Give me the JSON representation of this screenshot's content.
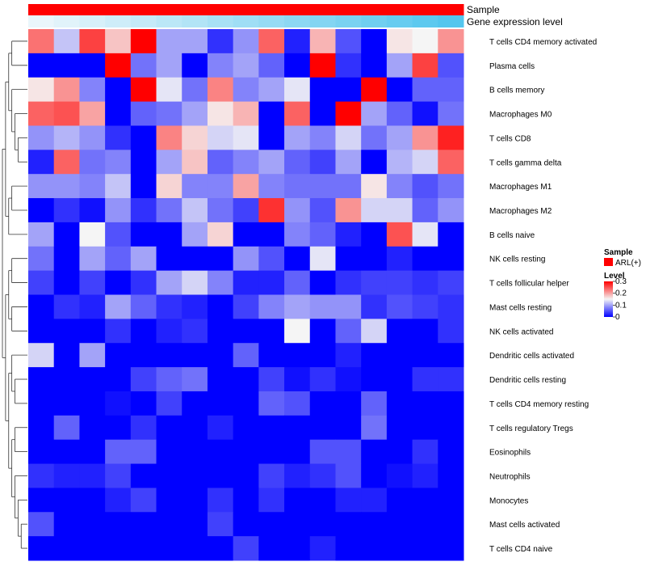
{
  "chart_data": {
    "type": "heatmap",
    "title": "",
    "annotation_tracks": [
      {
        "name": "Sample",
        "kind": "categorical",
        "values": "all ARL(+)"
      },
      {
        "name": "Gene expression level",
        "kind": "gradient",
        "from_color": "#eaf6fb",
        "to_color": "#54c6ee"
      }
    ],
    "rows": [
      "T cells CD4 memory activated",
      "Plasma cells",
      "B cells memory",
      "Macrophages M0",
      "T cells CD8",
      "T cells gamma delta",
      "Macrophages M1",
      "Macrophages M2",
      "B cells naive",
      "NK cells resting",
      "T cells follicular helper",
      "Mast cells resting",
      "NK cells activated",
      "Dendritic cells activated",
      "Dendritic cells resting",
      "T cells CD4 memory resting",
      "T cells regulatory  Tregs",
      "Eosinophils",
      "Neutrophils",
      "Monocytes",
      "Mast cells activated",
      "T cells CD4 naive"
    ],
    "n_columns": 17,
    "values": [
      [
        0.23,
        0.12,
        0.26,
        0.18,
        0.3,
        0.1,
        0.1,
        0.03,
        0.09,
        0.24,
        0.02,
        0.19,
        0.05,
        0.0,
        0.16,
        0.15,
        0.21
      ],
      [
        0.0,
        0.0,
        0.0,
        0.3,
        0.07,
        0.1,
        0.0,
        0.08,
        0.1,
        0.06,
        0.0,
        0.3,
        0.03,
        0.0,
        0.1,
        0.26,
        0.05
      ],
      [
        0.16,
        0.21,
        0.08,
        0.0,
        0.3,
        0.14,
        0.07,
        0.22,
        0.08,
        0.1,
        0.14,
        0.0,
        0.0,
        0.3,
        0.0,
        0.06,
        0.06
      ],
      [
        0.24,
        0.25,
        0.2,
        0.0,
        0.06,
        0.07,
        0.1,
        0.16,
        0.19,
        0.0,
        0.24,
        0.0,
        0.3,
        0.1,
        0.06,
        0.01,
        0.07
      ],
      [
        0.09,
        0.11,
        0.09,
        0.03,
        0.0,
        0.22,
        0.17,
        0.13,
        0.14,
        0.0,
        0.1,
        0.08,
        0.13,
        0.07,
        0.1,
        0.21,
        0.28
      ],
      [
        0.02,
        0.24,
        0.07,
        0.08,
        0.0,
        0.1,
        0.18,
        0.06,
        0.08,
        0.1,
        0.06,
        0.04,
        0.1,
        0.0,
        0.11,
        0.13,
        0.24
      ],
      [
        0.09,
        0.09,
        0.08,
        0.12,
        0.0,
        0.17,
        0.08,
        0.08,
        0.2,
        0.08,
        0.07,
        0.07,
        0.07,
        0.16,
        0.08,
        0.05,
        0.07
      ],
      [
        0.0,
        0.03,
        0.01,
        0.09,
        0.03,
        0.07,
        0.12,
        0.07,
        0.04,
        0.27,
        0.09,
        0.05,
        0.21,
        0.13,
        0.13,
        0.06,
        0.09
      ],
      [
        0.1,
        0.0,
        0.15,
        0.05,
        0.0,
        0.0,
        0.1,
        0.17,
        0.0,
        0.0,
        0.08,
        0.06,
        0.02,
        0.0,
        0.25,
        0.14,
        0.0
      ],
      [
        0.07,
        0.0,
        0.1,
        0.06,
        0.1,
        0.0,
        0.0,
        0.0,
        0.09,
        0.05,
        0.0,
        0.14,
        0.0,
        0.0,
        0.02,
        0.0,
        0.0
      ],
      [
        0.04,
        0.0,
        0.04,
        0.0,
        0.03,
        0.1,
        0.13,
        0.08,
        0.02,
        0.02,
        0.06,
        0.0,
        0.03,
        0.04,
        0.04,
        0.03,
        0.04
      ],
      [
        0.0,
        0.03,
        0.02,
        0.1,
        0.06,
        0.03,
        0.02,
        0.0,
        0.04,
        0.08,
        0.1,
        0.09,
        0.09,
        0.03,
        0.05,
        0.04,
        0.03
      ],
      [
        0.0,
        0.0,
        0.0,
        0.03,
        0.0,
        0.02,
        0.03,
        0.0,
        0.0,
        0.0,
        0.15,
        0.0,
        0.06,
        0.13,
        0.0,
        0.0,
        0.03
      ],
      [
        0.13,
        0.0,
        0.1,
        0.0,
        0.0,
        0.0,
        0.0,
        0.0,
        0.06,
        0.0,
        0.0,
        0.0,
        0.02,
        0.0,
        0.0,
        0.0,
        0.0
      ],
      [
        0.0,
        0.0,
        0.0,
        0.0,
        0.04,
        0.06,
        0.07,
        0.0,
        0.0,
        0.04,
        0.01,
        0.03,
        0.01,
        0.0,
        0.0,
        0.03,
        0.03
      ],
      [
        0.0,
        0.0,
        0.0,
        0.01,
        0.0,
        0.04,
        0.0,
        0.0,
        0.0,
        0.06,
        0.05,
        0.0,
        0.0,
        0.06,
        0.0,
        0.0,
        0.0
      ],
      [
        0.0,
        0.06,
        0.0,
        0.0,
        0.03,
        0.0,
        0.0,
        0.02,
        0.0,
        0.0,
        0.0,
        0.0,
        0.0,
        0.07,
        0.0,
        0.0,
        0.0
      ],
      [
        0.0,
        0.0,
        0.0,
        0.06,
        0.06,
        0.0,
        0.0,
        0.0,
        0.0,
        0.0,
        0.0,
        0.05,
        0.05,
        0.0,
        0.0,
        0.03,
        0.0
      ],
      [
        0.03,
        0.02,
        0.02,
        0.04,
        0.0,
        0.0,
        0.0,
        0.0,
        0.0,
        0.04,
        0.02,
        0.03,
        0.05,
        0.0,
        0.01,
        0.02,
        0.0
      ],
      [
        0.0,
        0.0,
        0.0,
        0.02,
        0.04,
        0.0,
        0.0,
        0.03,
        0.0,
        0.03,
        0.0,
        0.0,
        0.02,
        0.02,
        0.0,
        0.0,
        0.0
      ],
      [
        0.05,
        0.0,
        0.0,
        0.0,
        0.0,
        0.0,
        0.0,
        0.04,
        0.0,
        0.0,
        0.0,
        0.0,
        0.0,
        0.0,
        0.0,
        0.0,
        0.0
      ],
      [
        0.0,
        0.0,
        0.0,
        0.0,
        0.0,
        0.0,
        0.0,
        0.0,
        0.04,
        0.0,
        0.0,
        0.02,
        0.0,
        0.0,
        0.0,
        0.0,
        0.0
      ]
    ],
    "color_scale": {
      "min": 0,
      "mid": 0.15,
      "max": 0.3,
      "low_color": "#0000ff",
      "mid_color": "#f5f5f5",
      "high_color": "#ff0000"
    },
    "legend": {
      "sample_title": "Sample",
      "sample_entries": [
        {
          "label": "ARL(+)",
          "color": "#ff0000"
        }
      ],
      "level_title": "Level",
      "level_ticks": [
        "0.3",
        "0.2",
        "0.1",
        "0"
      ],
      "level_tick_values": [
        0.3,
        0.2,
        0.1,
        0
      ],
      "placement": "right"
    },
    "dendrogram": "rows"
  }
}
